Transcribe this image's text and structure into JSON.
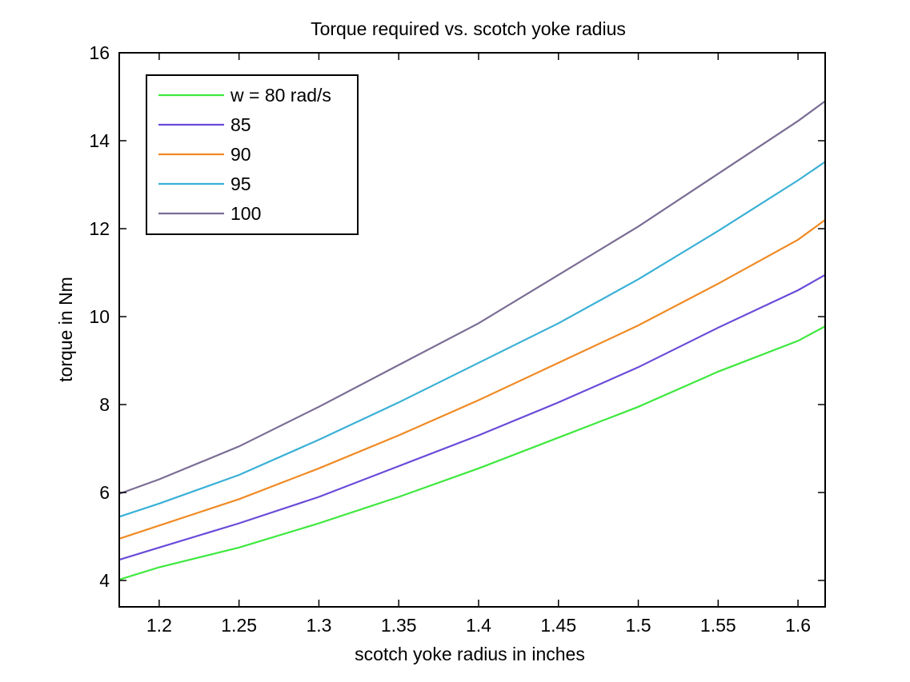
{
  "chart_data": {
    "type": "line",
    "title": "Torque required vs. scotch yoke radius",
    "xlabel": "scotch yoke radius in inches",
    "ylabel": "torque in Nm",
    "xlim": [
      1.175,
      1.617
    ],
    "ylim": [
      3.4,
      16
    ],
    "xticks": [
      1.2,
      1.25,
      1.3,
      1.35,
      1.4,
      1.45,
      1.5,
      1.55,
      1.6
    ],
    "xtick_labels": [
      "1.2",
      "1.25",
      "1.3",
      "1.35",
      "1.4",
      "1.45",
      "1.5",
      "1.55",
      "1.6"
    ],
    "yticks": [
      4,
      6,
      8,
      10,
      12,
      14,
      16
    ],
    "ytick_labels": [
      "4",
      "6",
      "8",
      "10",
      "12",
      "14",
      "16"
    ],
    "grid": false,
    "legend_position": "top-left",
    "x": [
      1.175,
      1.2,
      1.25,
      1.3,
      1.35,
      1.4,
      1.45,
      1.5,
      1.55,
      1.6,
      1.617
    ],
    "series": [
      {
        "name": "w = 80 rad/s",
        "color": "#3ee83e",
        "values": [
          4.02,
          4.3,
          4.75,
          5.3,
          5.9,
          6.55,
          7.25,
          7.95,
          8.75,
          9.45,
          9.78
        ]
      },
      {
        "name": "85",
        "color": "#6a4bd9",
        "values": [
          4.47,
          4.75,
          5.3,
          5.9,
          6.6,
          7.3,
          8.05,
          8.85,
          9.75,
          10.6,
          10.95
        ]
      },
      {
        "name": "90",
        "color": "#f08a24",
        "values": [
          4.95,
          5.25,
          5.85,
          6.55,
          7.3,
          8.1,
          8.95,
          9.8,
          10.75,
          11.75,
          12.2
        ]
      },
      {
        "name": "95",
        "color": "#3ab0d6",
        "values": [
          5.45,
          5.75,
          6.4,
          7.2,
          8.05,
          8.95,
          9.85,
          10.85,
          11.95,
          13.1,
          13.52
        ]
      },
      {
        "name": "100",
        "color": "#7a6d94",
        "values": [
          5.97,
          6.3,
          7.05,
          7.95,
          8.9,
          9.85,
          10.95,
          12.05,
          13.25,
          14.45,
          14.9
        ]
      }
    ]
  }
}
